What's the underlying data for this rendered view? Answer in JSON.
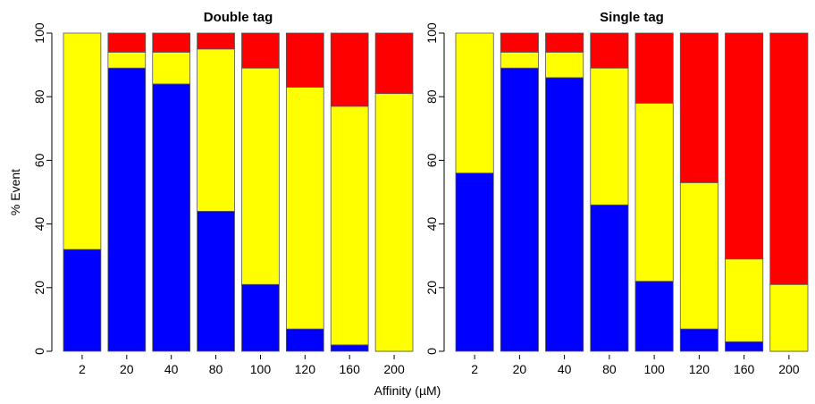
{
  "chart_data": [
    {
      "type": "bar",
      "stacked": true,
      "title": "Double tag",
      "ylabel": "% Event",
      "xlabel": "Affinity (µM)",
      "ylim": [
        0,
        100
      ],
      "yticks": [
        "0",
        "20",
        "40",
        "60",
        "80",
        "100"
      ],
      "categories": [
        "2",
        "20",
        "40",
        "80",
        "100",
        "120",
        "160",
        "200"
      ],
      "grid": false,
      "series": [
        {
          "color": "#0000ff",
          "values": [
            32,
            89,
            84,
            44,
            21,
            7,
            2,
            0
          ]
        },
        {
          "color": "#ffff00",
          "values": [
            68,
            5,
            10,
            51,
            68,
            76,
            75,
            81
          ]
        },
        {
          "color": "#ff0000",
          "values": [
            0,
            6,
            6,
            5,
            11,
            17,
            23,
            19
          ]
        }
      ]
    },
    {
      "type": "bar",
      "stacked": true,
      "title": "Single tag",
      "ylabel": "",
      "xlabel": "Affinity (µM)",
      "ylim": [
        0,
        100
      ],
      "yticks": [
        "0",
        "20",
        "40",
        "60",
        "80",
        "100"
      ],
      "categories": [
        "2",
        "20",
        "40",
        "80",
        "100",
        "120",
        "160",
        "200"
      ],
      "grid": false,
      "series": [
        {
          "color": "#0000ff",
          "values": [
            56,
            89,
            86,
            46,
            22,
            7,
            3,
            0
          ]
        },
        {
          "color": "#ffff00",
          "values": [
            44,
            5,
            8,
            43,
            56,
            46,
            26,
            21
          ]
        },
        {
          "color": "#ff0000",
          "values": [
            0,
            6,
            6,
            11,
            22,
            47,
            71,
            79
          ]
        }
      ]
    }
  ],
  "shared": {
    "xlabel": "Affinity (µM)"
  }
}
